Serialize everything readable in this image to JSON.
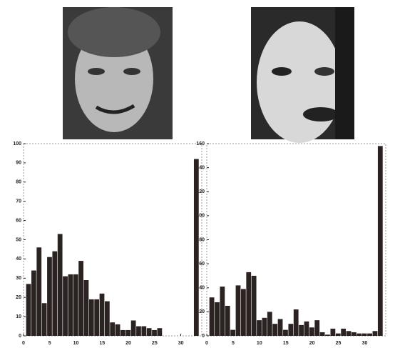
{
  "chart_data": [
    {
      "type": "bar",
      "color": "#2b2222",
      "x": [
        1,
        2,
        3,
        4,
        5,
        6,
        7,
        8,
        9,
        10,
        11,
        12,
        13,
        14,
        15,
        16,
        17,
        18,
        19,
        20,
        21,
        22,
        23,
        24,
        25,
        26,
        33
      ],
      "values": [
        27,
        34,
        46,
        17,
        41,
        44,
        53,
        31,
        32,
        32,
        39,
        29,
        19,
        19,
        22,
        18,
        7,
        6,
        3,
        3,
        8,
        5,
        5,
        4,
        3,
        4,
        92
      ],
      "xlim": [
        0,
        34
      ],
      "xticks": [
        0,
        5,
        10,
        15,
        20,
        25,
        30
      ],
      "ylim": [
        0,
        100
      ],
      "yticks": [
        0,
        10,
        20,
        30,
        40,
        50,
        60,
        70,
        80,
        90,
        100
      ]
    },
    {
      "type": "bar",
      "color": "#2b2222",
      "x": [
        1,
        2,
        3,
        4,
        5,
        6,
        7,
        8,
        9,
        10,
        11,
        12,
        13,
        14,
        15,
        16,
        17,
        18,
        19,
        20,
        21,
        22,
        23,
        24,
        25,
        26,
        27,
        28,
        29,
        30,
        31,
        32,
        33
      ],
      "values": [
        32,
        28,
        41,
        25,
        5,
        42,
        39,
        53,
        50,
        13,
        15,
        20,
        10,
        14,
        5,
        10,
        22,
        9,
        12,
        7,
        13,
        3,
        1,
        6,
        2,
        6,
        4,
        3,
        2,
        2,
        2,
        4,
        158
      ],
      "xlim": [
        0,
        34
      ],
      "xticks": [
        0,
        5,
        10,
        15,
        20,
        25,
        30
      ],
      "ylim": [
        0,
        160
      ],
      "yticks": [
        0,
        20,
        40,
        60,
        80,
        100,
        120,
        140,
        160
      ]
    }
  ]
}
